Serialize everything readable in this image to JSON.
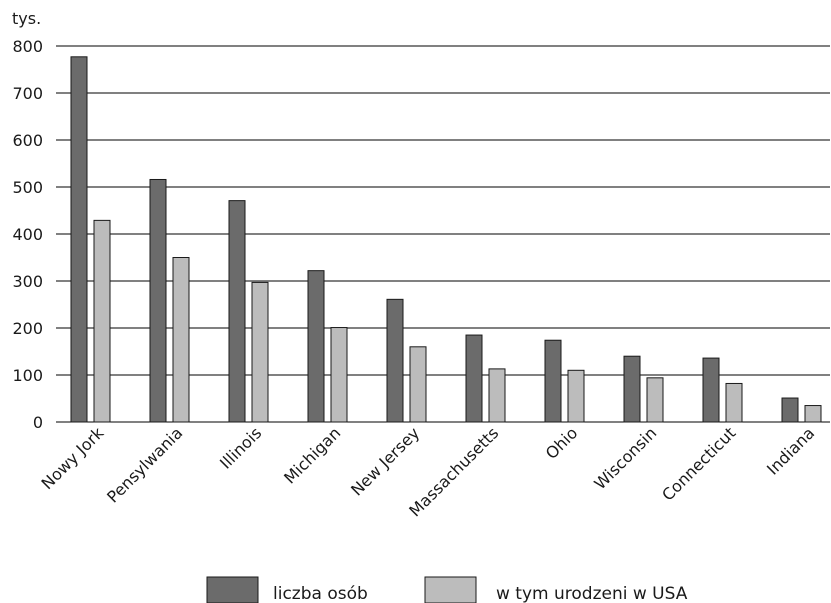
{
  "chart_data": {
    "type": "bar",
    "unit_label": "tys.",
    "categories": [
      "Nowy Jork",
      "Pensylwania",
      "Illinois",
      "Michigan",
      "New Jersey",
      "Massachusetts",
      "Ohio",
      "Wisconsin",
      "Connecticut",
      "Indiana"
    ],
    "series": [
      {
        "name": "liczba osób",
        "color": "#6b6b6b",
        "values": [
          777,
          516,
          471,
          322,
          261,
          185,
          174,
          140,
          136,
          51
        ]
      },
      {
        "name": "w tym urodzeni w USA",
        "color": "#bcbcbc",
        "values": [
          429,
          350,
          297,
          201,
          160,
          113,
          110,
          94,
          82,
          35
        ]
      }
    ],
    "ylim": [
      0,
      800
    ],
    "yticks": [
      0,
      100,
      200,
      300,
      400,
      500,
      600,
      700,
      800
    ],
    "grid": true,
    "legend_position": "bottom"
  }
}
